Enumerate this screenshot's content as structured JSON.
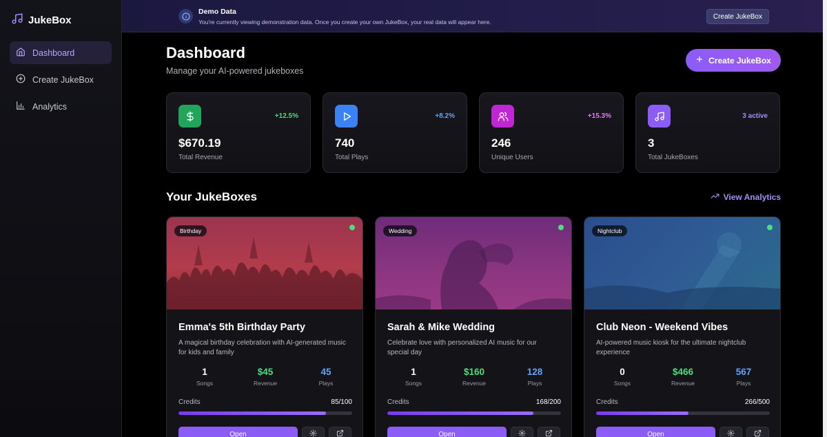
{
  "sidebar": {
    "brand": "JukeBox",
    "items": [
      {
        "label": "Dashboard",
        "icon": "home-icon",
        "active": true
      },
      {
        "label": "Create JukeBox",
        "icon": "plus-circle-icon",
        "active": false
      },
      {
        "label": "Analytics",
        "icon": "bar-chart-icon",
        "active": false
      }
    ]
  },
  "banner": {
    "title": "Demo Data",
    "subtitle": "You're currently viewing demonstration data. Once you create your own JukeBox, your real data will appear here.",
    "button": "Create JukeBox"
  },
  "header": {
    "title": "Dashboard",
    "subtitle": "Manage your AI-powered jukeboxes",
    "create_button": "Create JukeBox"
  },
  "stats": [
    {
      "value": "$670.19",
      "label": "Total Revenue",
      "change": "+12.5%",
      "icon": "dollar-icon",
      "color": "#22a55a",
      "change_color": "#4ade80"
    },
    {
      "value": "740",
      "label": "Total Plays",
      "change": "+8.2%",
      "icon": "play-icon",
      "color": "#3b82f6",
      "change_color": "#60a5fa"
    },
    {
      "value": "246",
      "label": "Unique Users",
      "change": "+15.3%",
      "icon": "users-icon",
      "color": "#c026d3",
      "change_color": "#e879f9"
    },
    {
      "value": "3",
      "label": "Total JukeBoxes",
      "change": "3 active",
      "icon": "music-note-icon",
      "color": "#8b5cf6",
      "change_color": "#a78bfa"
    }
  ],
  "section": {
    "title": "Your JukeBoxes",
    "view_analytics": "View Analytics"
  },
  "jukeboxes": [
    {
      "category": "Birthday",
      "title": "Emma's 5th Birthday Party",
      "description": "A magical birthday celebration with AI-generated music for kids and family",
      "songs": "1",
      "songs_label": "Songs",
      "revenue": "$45",
      "revenue_label": "Revenue",
      "plays": "45",
      "plays_label": "Plays",
      "credits_label": "Credits",
      "credits": "85/100",
      "credits_fraction": 0.85,
      "open": "Open",
      "image_color": "#a83846"
    },
    {
      "category": "Wedding",
      "title": "Sarah & Mike Wedding",
      "description": "Celebrate love with personalized AI music for our special day",
      "songs": "1",
      "songs_label": "Songs",
      "revenue": "$160",
      "revenue_label": "Revenue",
      "plays": "128",
      "plays_label": "Plays",
      "credits_label": "Credits",
      "credits": "168/200",
      "credits_fraction": 0.84,
      "open": "Open",
      "image_color": "#8a3580"
    },
    {
      "category": "Nightclub",
      "title": "Club Neon - Weekend Vibes",
      "description": "AI-powered music kiosk for the ultimate nightclub experience",
      "songs": "0",
      "songs_label": "Songs",
      "revenue": "$466",
      "revenue_label": "Revenue",
      "plays": "567",
      "plays_label": "Plays",
      "credits_label": "Credits",
      "credits": "266/500",
      "credits_fraction": 0.532,
      "open": "Open",
      "image_color": "#2e5a92"
    }
  ]
}
